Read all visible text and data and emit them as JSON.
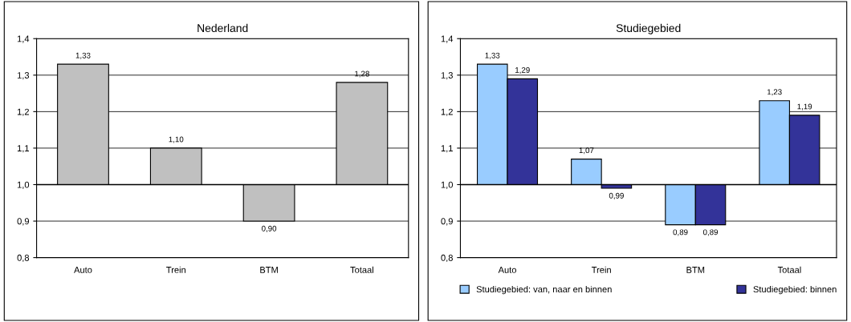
{
  "chart_data": [
    {
      "type": "bar",
      "title": "Nederland",
      "categories": [
        "Auto",
        "Trein",
        "BTM",
        "Totaal"
      ],
      "ref_lines": [
        {
          "axis": "y",
          "value": 1.0,
          "color": "#000000"
        }
      ],
      "series": [
        {
          "color": "#c0c0c0",
          "base": [
            1.0,
            1.0,
            1.0,
            1.0
          ],
          "values": [
            0.33,
            0.1,
            -0.1,
            0.28
          ],
          "value_labels": [
            "1,33",
            "1,10",
            "0,90",
            "1,28"
          ]
        }
      ],
      "ylim": [
        0.8,
        1.4
      ],
      "yticks": [
        {
          "value": 0.8,
          "label": "0,8"
        },
        {
          "value": 0.9,
          "label": "0,9"
        },
        {
          "value": 1.0,
          "label": "1,0"
        },
        {
          "value": 1.1,
          "label": "1,1"
        },
        {
          "value": 1.2,
          "label": "1,2"
        },
        {
          "value": 1.3,
          "label": "1,3"
        },
        {
          "value": 1.4,
          "label": "1,4"
        }
      ],
      "grid": "y",
      "legend": false
    },
    {
      "type": "bar",
      "title": "Studiegebied",
      "categories": [
        "Auto",
        "Trein",
        "BTM",
        "Totaal"
      ],
      "ref_lines": [
        {
          "axis": "y",
          "value": 1.0,
          "color": "#000000"
        }
      ],
      "series": [
        {
          "name": "Studiegebied: van, naar en binnen",
          "color": "#99ccff",
          "base": [
            1.0,
            1.0,
            1.0,
            1.0
          ],
          "values": [
            0.33,
            0.07,
            -0.11,
            0.23
          ],
          "value_labels": [
            "1,33",
            "1,07",
            "0,89",
            "1,23"
          ]
        },
        {
          "name": "Studiegebied: binnen",
          "color": "#333399",
          "base": [
            1.0,
            1.0,
            1.0,
            1.0
          ],
          "values": [
            0.29,
            -0.01,
            -0.11,
            0.19
          ],
          "value_labels": [
            "1,29",
            "0,99",
            "0,89",
            "1,19"
          ]
        }
      ],
      "ylim": [
        0.8,
        1.4
      ],
      "yticks": [
        {
          "value": 0.8,
          "label": "0,8"
        },
        {
          "value": 0.9,
          "label": "0,9"
        },
        {
          "value": 1.0,
          "label": "1,0"
        },
        {
          "value": 1.1,
          "label": "1,1"
        },
        {
          "value": 1.2,
          "label": "1,2"
        },
        {
          "value": 1.3,
          "label": "1,3"
        },
        {
          "value": 1.4,
          "label": "1,4"
        }
      ],
      "grid": "y",
      "legend": "bottom"
    }
  ]
}
